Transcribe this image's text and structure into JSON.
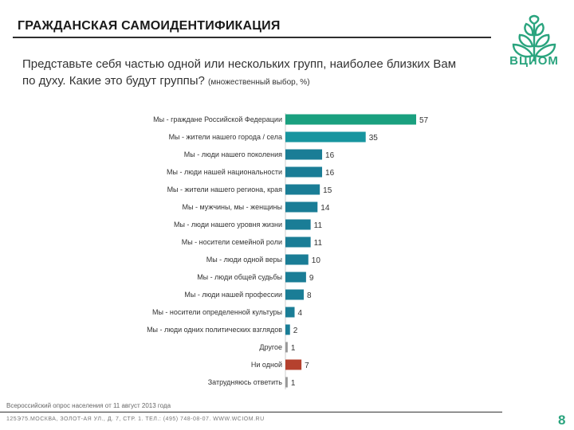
{
  "header": {
    "title": "ГРАЖДАНСКАЯ САМОИДЕНТИФИКАЦИЯ",
    "question": "Представьте себя частью одной или нескольких групп, наиболее близких Вам по духу. Какие это будут группы?",
    "question_note": "(множественный выбор, %)"
  },
  "brand": {
    "name": "ВЦИОМ"
  },
  "chart_data": {
    "type": "bar",
    "orientation": "horizontal",
    "title": "",
    "xlabel": "",
    "ylabel": "",
    "xlim": [
      0,
      57
    ],
    "categories": [
      "Мы - граждане Российской Федерации",
      "Мы - жители нашего города / села",
      "Мы - люди нашего поколения",
      "Мы - люди нашей национальности",
      "Мы - жители нашего региона, края",
      "Мы - мужчины, мы - женщины",
      "Мы - люди нашего уровня жизни",
      "Мы - носители семейной роли",
      "Мы - люди одной веры",
      "Мы - люди общей судьбы",
      "Мы - люди нашей профессии",
      "Мы - носители определенной культуры",
      "Мы - люди одних политических взглядов",
      "Другое",
      "Ни одной",
      "Затрудняюсь ответить"
    ],
    "values": [
      57,
      35,
      16,
      16,
      15,
      14,
      11,
      11,
      10,
      9,
      8,
      4,
      2,
      1,
      7,
      1
    ],
    "colors": [
      "#1aa07f",
      "#17959f",
      "#1a7d96",
      "#1a7d96",
      "#1a7d96",
      "#1a7d96",
      "#1a7d96",
      "#1a7d96",
      "#1a7d96",
      "#1a7d96",
      "#1a7d96",
      "#1a7d96",
      "#1a7d96",
      "#999999",
      "#b5412e",
      "#999999"
    ]
  },
  "footer": {
    "source": "Всероссийский опрос населения от 11 август 2013 года",
    "address": "125Э75.МОСКВА, ЗОЛОТ-АЯ УЛ., Д. 7, СТР. 1. ТЕЛ.: (495) 748-08-07. WWW.WCIOM.RU",
    "page_number": "8"
  }
}
